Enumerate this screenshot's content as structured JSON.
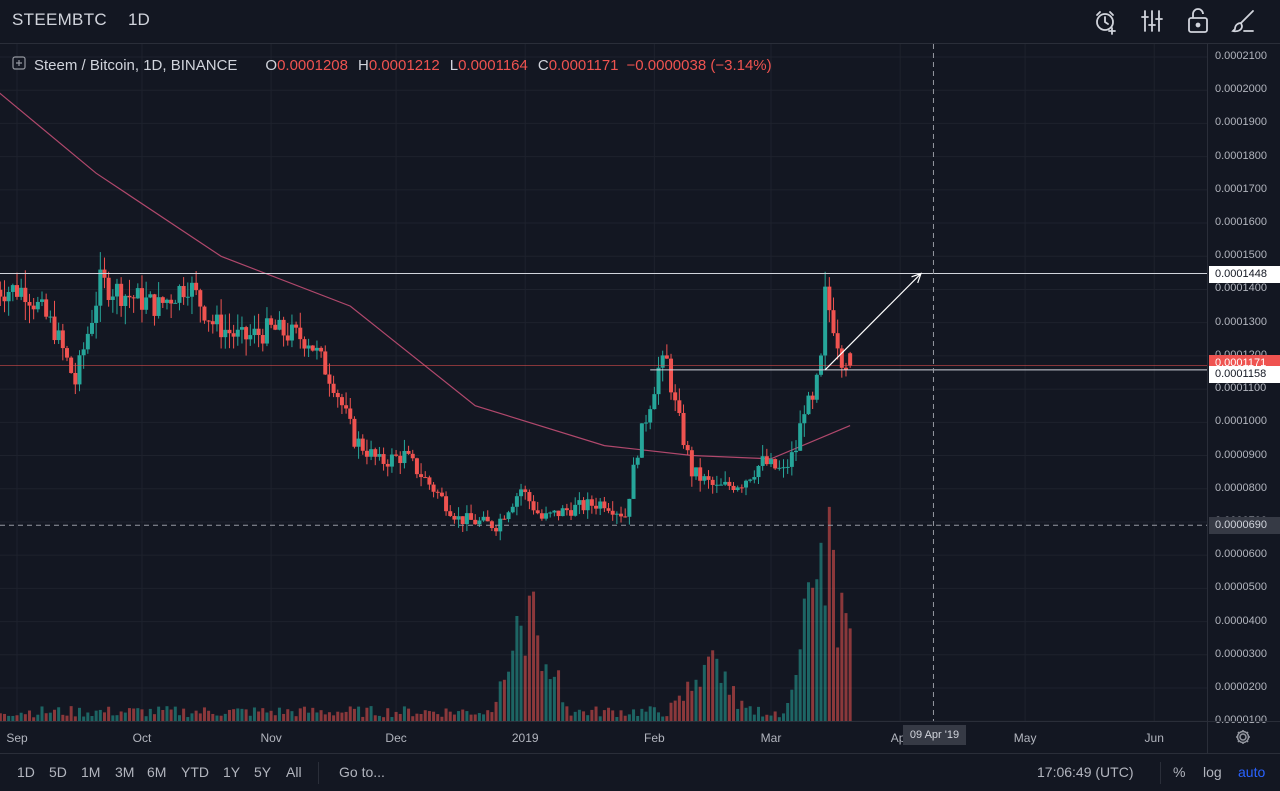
{
  "topbar": {
    "symbol": "STEEMBTC",
    "interval": "1D",
    "icons": [
      "alarm-add-icon",
      "indicators-icon",
      "lock-icon",
      "drawing-brush-icon"
    ]
  },
  "legend": {
    "title": "Steem / Bitcoin, 1D, BINANCE",
    "open_label": "O",
    "open": "0.0001208",
    "high_label": "H",
    "high": "0.0001212",
    "low_label": "L",
    "low": "0.0001164",
    "close_label": "C",
    "close": "0.0001171",
    "change": "−0.0000038 (−3.14%)"
  },
  "price_axis": {
    "labels": [
      "0.0002100",
      "0.0002000",
      "0.0001900",
      "0.0001800",
      "0.0001700",
      "0.0001600",
      "0.0001500",
      "0.0001400",
      "0.0001300",
      "0.0001200",
      "0.0001100",
      "0.0001000",
      "0.0000900",
      "0.0000800",
      "0.0000700",
      "0.0000600",
      "0.0000500",
      "0.0000400",
      "0.0000300",
      "0.0000200",
      "0.0000100"
    ],
    "badge_resistance": "0.0001448",
    "badge_last": "0.0001171",
    "badge_support": "0.0001158",
    "badge_crosshair": "0.0000690"
  },
  "time_axis": {
    "labels": [
      "Sep",
      "Oct",
      "Nov",
      "Dec",
      "2019",
      "Feb",
      "Mar",
      "Apr",
      "May",
      "Jun"
    ],
    "crosshair_date": "09 Apr '19"
  },
  "bottombar": {
    "ranges": [
      "1D",
      "5D",
      "1M",
      "3M",
      "6M",
      "YTD",
      "1Y",
      "5Y",
      "All"
    ],
    "goto": "Go to...",
    "clock": "17:06:49 (UTC)",
    "percent": "%",
    "log": "log",
    "auto": "auto"
  },
  "colors": {
    "up": "#26a69a",
    "down": "#ef5350",
    "ma": "#b0486c",
    "background": "#131722",
    "accent": "#2962ff"
  },
  "chart_data": {
    "type": "candlestick",
    "title": "Steem / Bitcoin, 1D, BINANCE",
    "ylim": [
      0,
      0.000215
    ],
    "x_range": [
      "2018-08-27",
      "2019-06-30"
    ],
    "horizontal_lines": [
      0.0001448,
      0.0001158
    ],
    "crosshair": {
      "date": "2019-04-09",
      "price": 6.9e-05
    },
    "projection_arrow": {
      "from": [
        "2019-03-14",
        0.0001158
      ],
      "to": [
        "2019-04-06",
        0.0001448
      ]
    },
    "keypoints": [
      {
        "date": "2018-08-27",
        "close": 0.00014
      },
      {
        "date": "2018-09-03",
        "close": 0.00014
      },
      {
        "date": "2018-09-10",
        "close": 0.000128
      },
      {
        "date": "2018-09-15",
        "close": 0.000112
      },
      {
        "date": "2018-09-21",
        "close": 0.000142
      },
      {
        "date": "2018-09-28",
        "close": 0.000138
      },
      {
        "date": "2018-10-05",
        "close": 0.000135
      },
      {
        "date": "2018-10-12",
        "close": 0.000142
      },
      {
        "date": "2018-10-18",
        "close": 0.00013
      },
      {
        "date": "2018-10-25",
        "close": 0.000125
      },
      {
        "date": "2018-11-01",
        "close": 0.000128
      },
      {
        "date": "2018-11-10",
        "close": 0.000125
      },
      {
        "date": "2018-11-16",
        "close": 0.000112
      },
      {
        "date": "2018-11-21",
        "close": 9.5e-05
      },
      {
        "date": "2018-11-27",
        "close": 8.8e-05
      },
      {
        "date": "2018-12-03",
        "close": 9e-05
      },
      {
        "date": "2018-12-10",
        "close": 8e-05
      },
      {
        "date": "2018-12-16",
        "close": 7.1e-05
      },
      {
        "date": "2018-12-25",
        "close": 6.9e-05
      },
      {
        "date": "2018-12-31",
        "close": 8e-05
      },
      {
        "date": "2019-01-05",
        "close": 7.1e-05
      },
      {
        "date": "2019-01-12",
        "close": 7.4e-05
      },
      {
        "date": "2019-01-20",
        "close": 7.6e-05
      },
      {
        "date": "2019-01-25",
        "close": 7.2e-05
      },
      {
        "date": "2019-01-28",
        "close": 9.2e-05
      },
      {
        "date": "2019-02-02",
        "close": 0.000116
      },
      {
        "date": "2019-02-04",
        "close": 0.000118
      },
      {
        "date": "2019-02-06",
        "close": 0.000105
      },
      {
        "date": "2019-02-10",
        "close": 8.5e-05
      },
      {
        "date": "2019-02-16",
        "close": 8e-05
      },
      {
        "date": "2019-02-22",
        "close": 8.2e-05
      },
      {
        "date": "2019-02-27",
        "close": 8.8e-05
      },
      {
        "date": "2019-03-04",
        "close": 8.5e-05
      },
      {
        "date": "2019-03-07",
        "close": 9.2e-05
      },
      {
        "date": "2019-03-09",
        "close": 0.000105
      },
      {
        "date": "2019-03-11",
        "close": 0.000105
      },
      {
        "date": "2019-03-13",
        "close": 0.000118
      },
      {
        "date": "2019-03-14",
        "close": 0.000138
      },
      {
        "date": "2019-03-16",
        "close": 0.00013
      },
      {
        "date": "2019-03-18",
        "close": 0.00012
      },
      {
        "date": "2019-03-20",
        "close": 0.0001171
      }
    ],
    "moving_average": [
      {
        "date": "2018-08-27",
        "value": 0.0002
      },
      {
        "date": "2018-09-20",
        "value": 0.000175
      },
      {
        "date": "2018-10-20",
        "value": 0.00015
      },
      {
        "date": "2018-11-20",
        "value": 0.000135
      },
      {
        "date": "2018-12-20",
        "value": 0.000105
      },
      {
        "date": "2019-01-20",
        "value": 9.3e-05
      },
      {
        "date": "2019-02-10",
        "value": 9e-05
      },
      {
        "date": "2019-03-01",
        "value": 8.9e-05
      },
      {
        "date": "2019-03-20",
        "value": 9.9e-05
      }
    ],
    "volume_peaks": [
      {
        "date": "2019-01-02",
        "value": 3e-05
      },
      {
        "date": "2019-02-14",
        "value": 1.5e-05
      },
      {
        "date": "2019-03-14",
        "value": 5.3e-05
      }
    ]
  }
}
